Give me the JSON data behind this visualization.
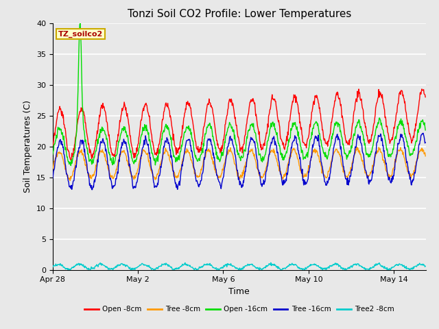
{
  "title": "Tonzi Soil CO2 Profile: Lower Temperatures",
  "xlabel": "Time",
  "ylabel": "Soil Temperatures (C)",
  "ylim": [
    0,
    40
  ],
  "yticks": [
    0,
    5,
    10,
    15,
    20,
    25,
    30,
    35,
    40
  ],
  "n_days": 17.5,
  "background_color": "#e8e8e8",
  "grid_color": "#ffffff",
  "label_box_color": "#ffffcc",
  "label_box_edge": "#ccaa00",
  "label_text_color": "#aa0000",
  "label_text": "TZ_soilco2",
  "series": [
    {
      "name": "Open -8cm",
      "color": "#ff0000"
    },
    {
      "name": "Tree -8cm",
      "color": "#ff9900"
    },
    {
      "name": "Open -16cm",
      "color": "#00dd00"
    },
    {
      "name": "Tree -16cm",
      "color": "#0000cc"
    },
    {
      "name": "Tree2 -8cm",
      "color": "#00cccc"
    }
  ],
  "xtick_labels": [
    "Apr 28",
    "May 2",
    "May 6",
    "May 10",
    "May 14"
  ],
  "xtick_days": [
    0,
    4,
    8,
    12,
    16
  ]
}
